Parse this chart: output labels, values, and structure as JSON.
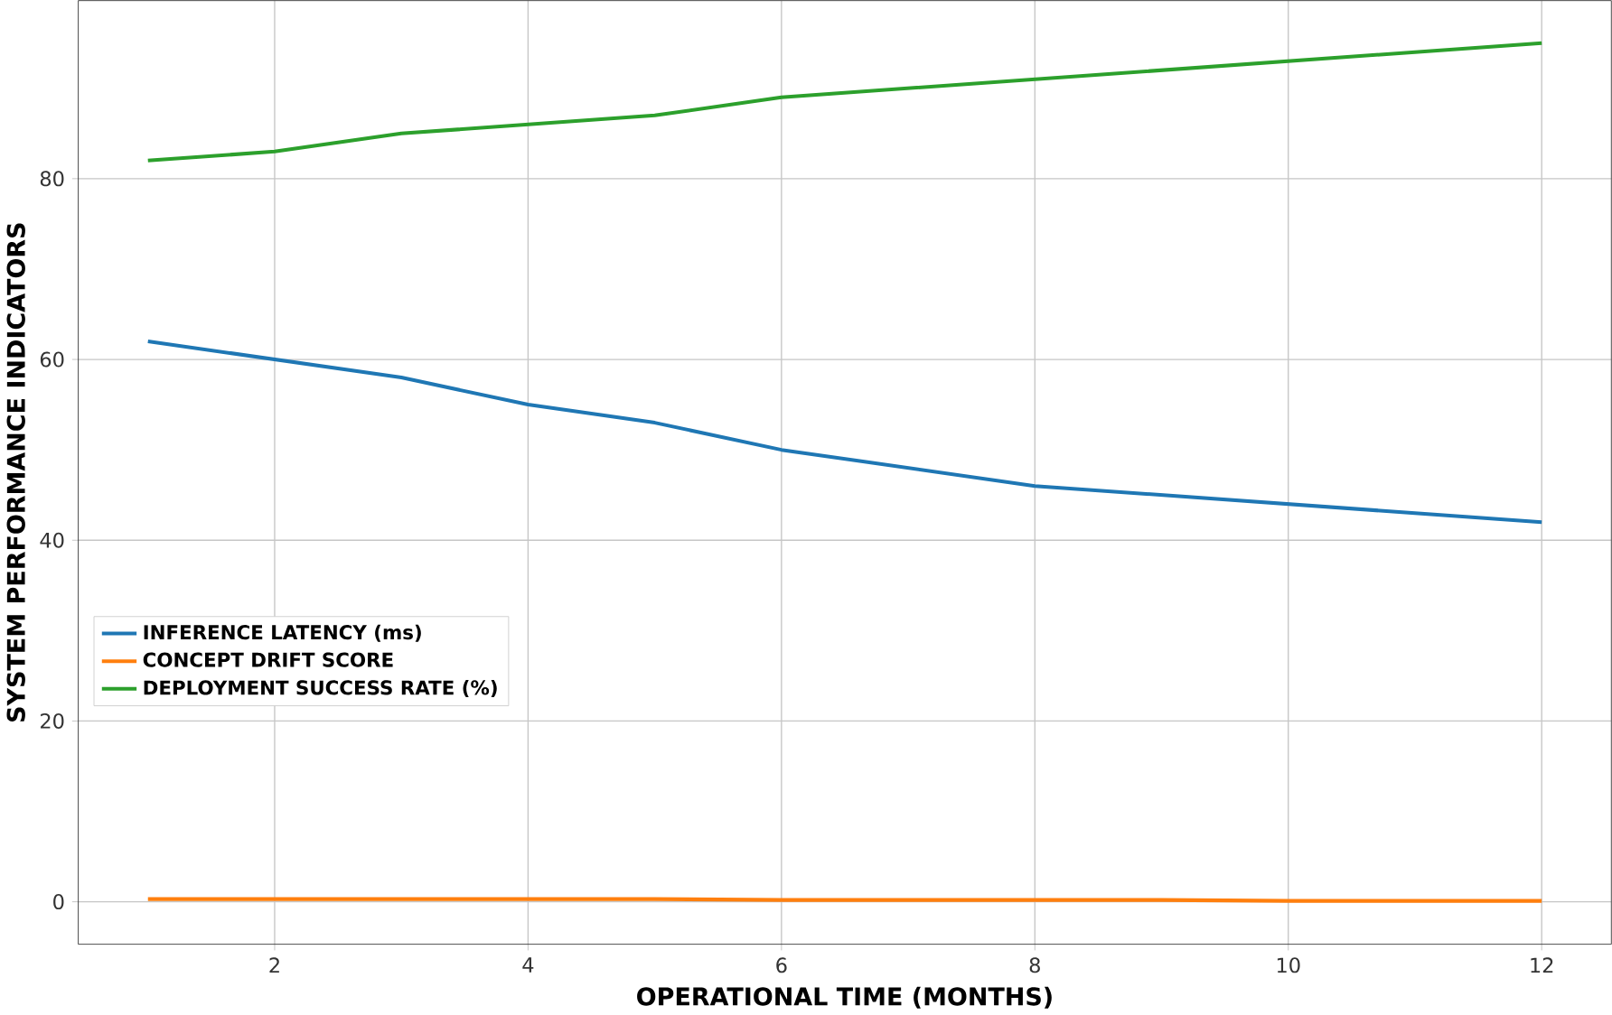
{
  "chart_data": {
    "type": "line",
    "xlabel": "OPERATIONAL TIME (MONTHS)",
    "ylabel": "SYSTEM PERFORMANCE INDICATORS",
    "x": [
      1,
      2,
      3,
      4,
      5,
      6,
      7,
      8,
      9,
      10,
      11,
      12
    ],
    "series": [
      {
        "name": "INFERENCE LATENCY (ms)",
        "color": "#1f77b4",
        "values": [
          62,
          60,
          58,
          55,
          53,
          50,
          48,
          46,
          45,
          44,
          43,
          42
        ]
      },
      {
        "name": "CONCEPT DRIFT SCORE",
        "color": "#ff7f0e",
        "values": [
          0.3,
          0.3,
          0.3,
          0.3,
          0.3,
          0.2,
          0.2,
          0.2,
          0.2,
          0.1,
          0.1,
          0.1
        ]
      },
      {
        "name": "DEPLOYMENT SUCCESS RATE (%)",
        "color": "#2ca02c",
        "values": [
          82,
          83,
          85,
          86,
          87,
          89,
          90,
          91,
          92,
          93,
          94,
          95
        ]
      }
    ],
    "xlim": [
      0.45,
      12.55
    ],
    "ylim": [
      -4.7,
      99.7
    ],
    "xticks": [
      2,
      4,
      6,
      8,
      10,
      12
    ],
    "yticks": [
      0,
      20,
      40,
      60,
      80
    ],
    "grid": true,
    "legend": "left",
    "marker": "none",
    "line_style": "solid"
  }
}
